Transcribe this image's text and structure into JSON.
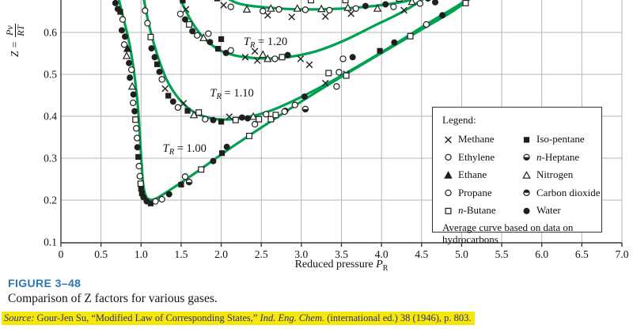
{
  "figure": {
    "label": "FIGURE 3–48",
    "caption": "Comparison of Z factors for various gases.",
    "source_prefix": "Source:",
    "source_text": " Gour-Jen Su, “Modified Law of Corresponding States,” ",
    "source_journal": "Ind. Eng. Chem.",
    "source_suffix": " (international ed.) 38 (1946), p. 803.",
    "label_color": "#2878b8",
    "highlight_color": "#f7e50e",
    "source_color": "#283569"
  },
  "chart_data": {
    "type": "scatter",
    "xlabel": "Reduced pressure P_R",
    "ylabel": "Z = Pv/RT",
    "xlabel_parts": {
      "text": "Reduced pressure ",
      "var": "P",
      "sub": "R"
    },
    "ylabel_parts": {
      "z": "Z =",
      "num": "Pv",
      "den": "RT"
    },
    "xlim": [
      0,
      7.0
    ],
    "ylim_visible": [
      0.1,
      0.685
    ],
    "grid": true,
    "x_ticks": [
      0,
      0.5,
      1.0,
      1.5,
      2.0,
      2.5,
      3.0,
      3.5,
      4.0,
      4.5,
      5.0,
      5.5,
      6.0,
      6.5,
      7.0
    ],
    "x_tick_labels": [
      "0",
      "0.5",
      "1.0",
      "1.5",
      "2.0",
      "2.5",
      "3.0",
      "3.5",
      "4.0",
      "4.5",
      "5.0",
      "5.5",
      "6.0",
      "6.5",
      "7.0"
    ],
    "y_ticks": [
      0.1,
      0.2,
      0.3,
      0.4,
      0.5,
      0.6
    ],
    "y_tick_labels": [
      "0.1",
      "0.2",
      "0.3",
      "0.4",
      "0.5",
      "0.6"
    ],
    "curve_color": "#00a24f",
    "grid_color": "#b5b5b5",
    "axis_color": "#3a3a3a",
    "symbol_color": "#1f1f1f",
    "curves": [
      {
        "id": "tr-1.30-partial",
        "points": [
          [
            1.94,
            0.7
          ],
          [
            2.2,
            0.67
          ],
          [
            2.6,
            0.659
          ],
          [
            3.0,
            0.655
          ],
          [
            3.4,
            0.656
          ],
          [
            3.8,
            0.661
          ],
          [
            4.1,
            0.668
          ],
          [
            4.35,
            0.677
          ],
          [
            4.6,
            0.695
          ]
        ]
      },
      {
        "id": "tr-1.20",
        "points": [
          [
            1.44,
            0.7
          ],
          [
            1.6,
            0.636
          ],
          [
            1.75,
            0.594
          ],
          [
            1.95,
            0.561
          ],
          [
            2.15,
            0.546
          ],
          [
            2.4,
            0.539
          ],
          [
            2.65,
            0.538
          ],
          [
            2.9,
            0.543
          ],
          [
            3.2,
            0.556
          ],
          [
            3.55,
            0.582
          ],
          [
            3.9,
            0.615
          ],
          [
            4.3,
            0.653
          ],
          [
            4.68,
            0.7
          ]
        ]
      },
      {
        "id": "tr-1.10",
        "points": [
          [
            1.015,
            0.7
          ],
          [
            1.1,
            0.617
          ],
          [
            1.2,
            0.548
          ],
          [
            1.32,
            0.487
          ],
          [
            1.48,
            0.44
          ],
          [
            1.65,
            0.411
          ],
          [
            1.85,
            0.396
          ],
          [
            2.05,
            0.392
          ],
          [
            2.3,
            0.397
          ],
          [
            2.6,
            0.412
          ],
          [
            3.0,
            0.446
          ],
          [
            3.4,
            0.486
          ],
          [
            3.8,
            0.53
          ],
          [
            4.2,
            0.576
          ],
          [
            4.6,
            0.624
          ],
          [
            5.0,
            0.67
          ],
          [
            5.16,
            0.7
          ]
        ]
      },
      {
        "id": "tr-1.00",
        "points": [
          [
            0.695,
            0.7
          ],
          [
            0.78,
            0.634
          ],
          [
            0.85,
            0.578
          ],
          [
            0.9,
            0.522
          ],
          [
            0.94,
            0.462
          ],
          [
            0.965,
            0.412
          ],
          [
            0.985,
            0.352
          ],
          [
            1.005,
            0.292
          ],
          [
            1.025,
            0.24
          ],
          [
            1.06,
            0.209
          ],
          [
            1.12,
            0.201
          ],
          [
            1.2,
            0.205
          ],
          [
            1.4,
            0.229
          ],
          [
            1.7,
            0.268
          ],
          [
            2.1,
            0.322
          ],
          [
            2.5,
            0.373
          ],
          [
            2.9,
            0.423
          ],
          [
            3.3,
            0.471
          ],
          [
            3.7,
            0.517
          ],
          [
            4.1,
            0.562
          ],
          [
            4.5,
            0.607
          ],
          [
            4.9,
            0.652
          ],
          [
            5.24,
            0.7
          ]
        ]
      }
    ],
    "curve_labels": [
      {
        "prefix": "T",
        "sub": "R",
        "text": " = 1.20",
        "p": 2.28,
        "z": 0.57
      },
      {
        "prefix": "T",
        "sub": "R",
        "text": " = 1.10",
        "p": 1.86,
        "z": 0.447
      },
      {
        "prefix": "T",
        "sub": "R",
        "text": " = 1.00",
        "p": 1.27,
        "z": 0.315
      }
    ],
    "scatter": [
      [
        0.68,
        0.67,
        "cf"
      ],
      [
        0.71,
        0.656,
        "cf"
      ],
      [
        0.74,
        0.649,
        "sf"
      ],
      [
        0.77,
        0.631,
        "o"
      ],
      [
        0.76,
        0.605,
        "cf"
      ],
      [
        0.8,
        0.59,
        "cf"
      ],
      [
        0.79,
        0.571,
        "o"
      ],
      [
        0.83,
        0.561,
        "ta"
      ],
      [
        0.82,
        0.544,
        "tn"
      ],
      [
        0.85,
        0.527,
        "cf"
      ],
      [
        0.88,
        0.511,
        "o"
      ],
      [
        0.86,
        0.492,
        "cf"
      ],
      [
        0.89,
        0.471,
        "tn"
      ],
      [
        0.905,
        0.452,
        "cf"
      ],
      [
        0.9,
        0.432,
        "o"
      ],
      [
        0.92,
        0.412,
        "cf"
      ],
      [
        0.93,
        0.392,
        "sq"
      ],
      [
        0.94,
        0.371,
        "o"
      ],
      [
        0.95,
        0.348,
        "o"
      ],
      [
        0.955,
        0.326,
        "cf"
      ],
      [
        0.965,
        0.303,
        "sf"
      ],
      [
        0.975,
        0.281,
        "o"
      ],
      [
        0.985,
        0.257,
        "o"
      ],
      [
        0.995,
        0.239,
        "sq"
      ],
      [
        1.0,
        0.227,
        "sf"
      ],
      [
        1.01,
        0.216,
        "sf"
      ],
      [
        1.03,
        0.207,
        "cf"
      ],
      [
        1.07,
        0.197,
        "cf"
      ],
      [
        1.12,
        0.192,
        "sf"
      ],
      [
        1.18,
        0.197,
        "o"
      ],
      [
        1.26,
        0.202,
        "o"
      ],
      [
        1.35,
        0.214,
        "cf"
      ],
      [
        1.5,
        0.237,
        "sf"
      ],
      [
        1.6,
        0.243,
        "hb"
      ],
      [
        1.55,
        0.256,
        "o"
      ],
      [
        1.75,
        0.273,
        "sq"
      ],
      [
        1.9,
        0.293,
        "cf"
      ],
      [
        2.01,
        0.312,
        "sf"
      ],
      [
        2.07,
        0.327,
        "cf"
      ],
      [
        2.35,
        0.353,
        "sq"
      ],
      [
        2.42,
        0.381,
        "o"
      ],
      [
        2.62,
        0.393,
        "sq"
      ],
      [
        2.8,
        0.413,
        "cf"
      ],
      [
        3.05,
        0.417,
        "hb"
      ],
      [
        3.04,
        0.447,
        "cf"
      ],
      [
        1.05,
        0.652,
        "o"
      ],
      [
        1.08,
        0.622,
        "o"
      ],
      [
        1.12,
        0.589,
        "sq"
      ],
      [
        1.13,
        0.562,
        "cf"
      ],
      [
        1.17,
        0.541,
        "cf"
      ],
      [
        1.2,
        0.524,
        "sf"
      ],
      [
        1.23,
        0.506,
        "cf"
      ],
      [
        1.26,
        0.488,
        "o"
      ],
      [
        1.3,
        0.466,
        "x"
      ],
      [
        1.34,
        0.449,
        "sf"
      ],
      [
        1.4,
        0.435,
        "cf"
      ],
      [
        1.46,
        0.421,
        "o"
      ],
      [
        1.53,
        0.431,
        "x"
      ],
      [
        1.58,
        0.413,
        "sf"
      ],
      [
        1.66,
        0.403,
        "tn"
      ],
      [
        1.72,
        0.409,
        "sq"
      ],
      [
        1.8,
        0.393,
        "o"
      ],
      [
        1.9,
        0.391,
        "cf"
      ],
      [
        2.0,
        0.387,
        "sf"
      ],
      [
        2.1,
        0.399,
        "x"
      ],
      [
        2.18,
        0.391,
        "sq"
      ],
      [
        2.26,
        0.397,
        "cf"
      ],
      [
        2.33,
        0.395,
        "cf"
      ],
      [
        2.4,
        0.399,
        "tn"
      ],
      [
        2.47,
        0.393,
        "sq"
      ],
      [
        2.56,
        0.405,
        "o"
      ],
      [
        2.68,
        0.403,
        "sq"
      ],
      [
        2.79,
        0.411,
        "o"
      ],
      [
        2.92,
        0.427,
        "o"
      ],
      [
        3.3,
        0.479,
        "x"
      ],
      [
        3.56,
        0.501,
        "x"
      ],
      [
        3.44,
        0.471,
        "o"
      ],
      [
        3.34,
        0.503,
        "sq"
      ],
      [
        3.47,
        0.505,
        "o"
      ],
      [
        3.56,
        0.497,
        "sq"
      ],
      [
        3.52,
        0.537,
        "o"
      ],
      [
        3.64,
        0.541,
        "cf"
      ],
      [
        3.98,
        0.556,
        "sf"
      ],
      [
        4.16,
        0.576,
        "cf"
      ],
      [
        4.36,
        0.591,
        "sq"
      ],
      [
        4.56,
        0.619,
        "o"
      ],
      [
        4.76,
        0.641,
        "cf"
      ],
      [
        4.67,
        0.672,
        "cf"
      ],
      [
        5.05,
        0.67,
        "sq"
      ],
      [
        1.52,
        0.676,
        "sf"
      ],
      [
        1.56,
        0.655,
        "x"
      ],
      [
        1.49,
        0.644,
        "o"
      ],
      [
        1.55,
        0.631,
        "cf"
      ],
      [
        1.6,
        0.619,
        "sq"
      ],
      [
        1.64,
        0.603,
        "cf"
      ],
      [
        1.7,
        0.593,
        "o"
      ],
      [
        1.78,
        0.587,
        "tn"
      ],
      [
        1.84,
        0.597,
        "o"
      ],
      [
        1.86,
        0.577,
        "cf"
      ],
      [
        1.96,
        0.561,
        "sf"
      ],
      [
        2.0,
        0.584,
        "sf"
      ],
      [
        2.06,
        0.551,
        "cf"
      ],
      [
        2.12,
        0.557,
        "o"
      ],
      [
        2.3,
        0.541,
        "x"
      ],
      [
        2.42,
        0.555,
        "x"
      ],
      [
        2.45,
        0.533,
        "x"
      ],
      [
        2.52,
        0.547,
        "tn"
      ],
      [
        2.58,
        0.537,
        "tn"
      ],
      [
        2.67,
        0.537,
        "o"
      ],
      [
        2.76,
        0.541,
        "sq"
      ],
      [
        2.83,
        0.546,
        "cf"
      ],
      [
        2.99,
        0.537,
        "x"
      ],
      [
        3.1,
        0.523,
        "x"
      ],
      [
        1.95,
        0.681,
        "sf"
      ],
      [
        2.03,
        0.665,
        "x"
      ],
      [
        2.12,
        0.661,
        "o"
      ],
      [
        2.32,
        0.655,
        "tn"
      ],
      [
        2.52,
        0.651,
        "o"
      ],
      [
        2.62,
        0.657,
        "tn"
      ],
      [
        2.72,
        0.655,
        "o"
      ],
      [
        2.58,
        0.641,
        "x"
      ],
      [
        2.88,
        0.637,
        "x"
      ],
      [
        2.95,
        0.657,
        "tn"
      ],
      [
        3.05,
        0.654,
        "o"
      ],
      [
        3.12,
        0.677,
        "sq"
      ],
      [
        3.25,
        0.656,
        "tn"
      ],
      [
        3.35,
        0.653,
        "o"
      ],
      [
        3.3,
        0.638,
        "x"
      ],
      [
        3.55,
        0.677,
        "sq"
      ],
      [
        3.58,
        0.659,
        "tn"
      ],
      [
        3.68,
        0.657,
        "o"
      ],
      [
        3.62,
        0.645,
        "x"
      ],
      [
        3.8,
        0.663,
        "cf"
      ],
      [
        3.95,
        0.657,
        "tn"
      ],
      [
        4.05,
        0.667,
        "cf"
      ],
      [
        4.15,
        0.661,
        "o"
      ],
      [
        4.22,
        0.681,
        "sq"
      ],
      [
        4.28,
        0.653,
        "x"
      ],
      [
        4.38,
        0.673,
        "tn"
      ],
      [
        4.48,
        0.669,
        "o"
      ],
      [
        4.58,
        0.681,
        "cf"
      ]
    ]
  },
  "legend": {
    "title": "Legend:",
    "items": [
      {
        "symbol": "x",
        "label": "Methane"
      },
      {
        "symbol": "o",
        "label": "Ethylene"
      },
      {
        "symbol": "ta",
        "label": "Ethane"
      },
      {
        "symbol": "o",
        "label": "Propane"
      },
      {
        "symbol": "sq",
        "label": "n-Butane",
        "italic_prefix": true
      },
      {
        "symbol": "sf",
        "label": "Iso-pentane"
      },
      {
        "symbol": "hb",
        "label": "n-Heptane",
        "italic_prefix": true
      },
      {
        "symbol": "tn",
        "label": "Nitrogen"
      },
      {
        "symbol": "ht",
        "label": "Carbon dioxide"
      },
      {
        "symbol": "cf",
        "label": "Water"
      }
    ],
    "note": "Average curve based on data on hydrocarbons"
  }
}
